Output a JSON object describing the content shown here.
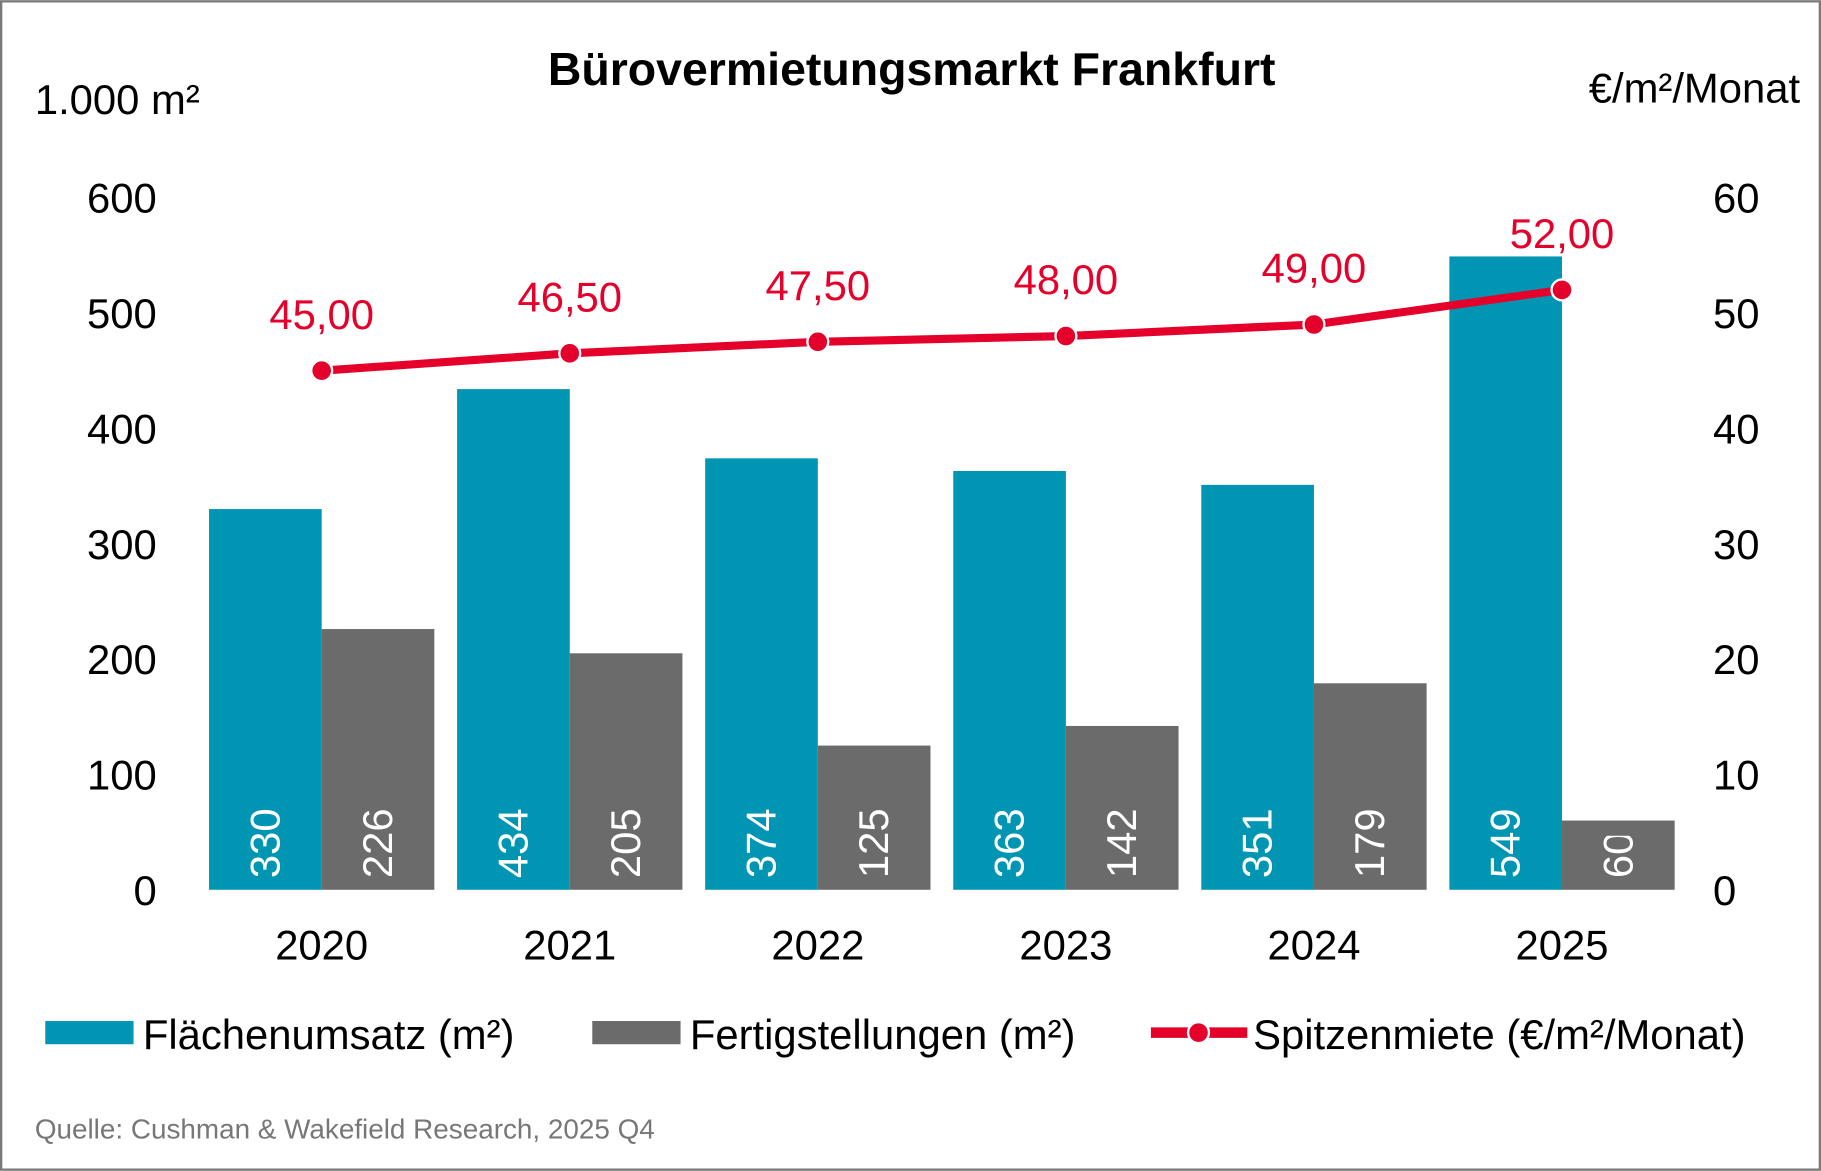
{
  "chart_data": {
    "type": "bar",
    "title": "Bürovermietungsmarkt Frankfurt",
    "ylabel_left": "1.000 m²",
    "ylabel_right": "€/m²/Monat",
    "ylim_left": [
      0,
      600
    ],
    "ylim_right": [
      0,
      60
    ],
    "yticks_left": [
      "0",
      "100",
      "200",
      "300",
      "400",
      "500",
      "600"
    ],
    "yticks_right": [
      "0",
      "10",
      "20",
      "30",
      "40",
      "50",
      "60"
    ],
    "grid": false,
    "legend_position": "bottom",
    "categories": [
      "2020",
      "2021",
      "2022",
      "2023",
      "2024",
      "2025"
    ],
    "series": [
      {
        "name": "Flächenumsatz (m²)",
        "type": "bar",
        "axis": "left",
        "color": "#0095b3",
        "values": [
          330,
          434,
          374,
          363,
          351,
          549
        ],
        "labels": [
          "330",
          "434",
          "374",
          "363",
          "351",
          "549"
        ]
      },
      {
        "name": "Fertigstellungen (m²)",
        "type": "bar",
        "axis": "left",
        "color": "#6b6b6b",
        "values": [
          226,
          205,
          125,
          142,
          179,
          60
        ],
        "labels": [
          "226",
          "205",
          "125",
          "142",
          "179",
          "60"
        ]
      },
      {
        "name": "Spitzenmiete (€/m²/Monat)",
        "type": "line",
        "axis": "right",
        "color": "#e4002b",
        "values": [
          45.0,
          46.5,
          47.5,
          48.0,
          49.0,
          52.0
        ],
        "labels": [
          "45,00",
          "46,50",
          "47,50",
          "48,00",
          "49,00",
          "52,00"
        ]
      }
    ],
    "source": "Quelle: Cushman & Wakefield Research, 2025 Q4"
  }
}
